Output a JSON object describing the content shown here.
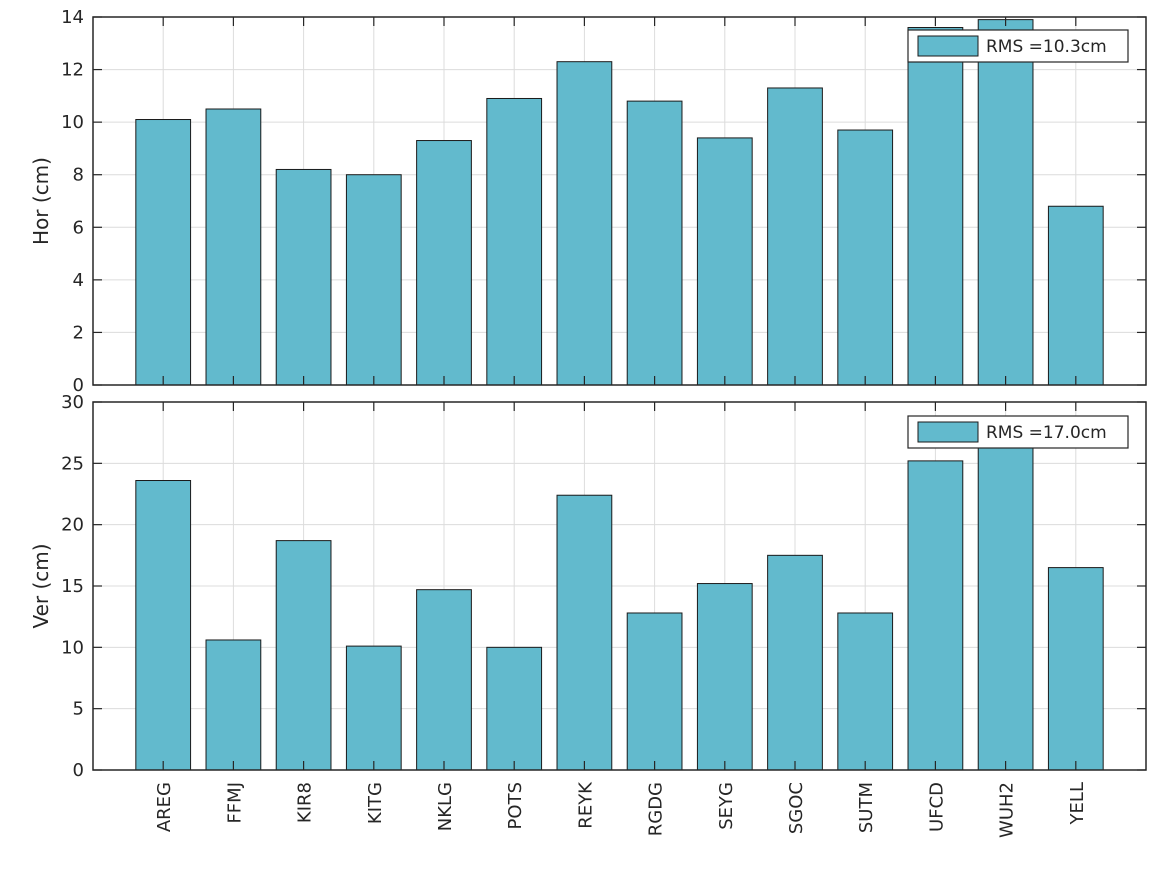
{
  "chart_data": [
    {
      "type": "bar",
      "ylabel": "Hor (cm)",
      "ylim": [
        0,
        14
      ],
      "yticks": [
        0,
        2,
        4,
        6,
        8,
        10,
        12,
        14
      ],
      "grid": true,
      "legend_placement": "top-right",
      "bar_color": "#62bacd",
      "categories": [
        "AREG",
        "FFMJ",
        "KIR8",
        "KITG",
        "NKLG",
        "POTS",
        "REYK",
        "RGDG",
        "SEYG",
        "SGOC",
        "SUTM",
        "UFCD",
        "WUH2",
        "YELL"
      ],
      "series": [
        {
          "name": "RMS =10.3cm",
          "values": [
            10.1,
            10.5,
            8.2,
            8.0,
            9.3,
            10.9,
            12.3,
            10.8,
            9.4,
            11.3,
            9.7,
            13.6,
            13.9,
            6.8
          ]
        }
      ]
    },
    {
      "type": "bar",
      "ylabel": "Ver (cm)",
      "ylim": [
        0,
        30
      ],
      "yticks": [
        0,
        5,
        10,
        15,
        20,
        25,
        30
      ],
      "grid": true,
      "legend_placement": "top-right",
      "bar_color": "#62bacd",
      "categories": [
        "AREG",
        "FFMJ",
        "KIR8",
        "KITG",
        "NKLG",
        "POTS",
        "REYK",
        "RGDG",
        "SEYG",
        "SGOC",
        "SUTM",
        "UFCD",
        "WUH2",
        "YELL"
      ],
      "series": [
        {
          "name": "RMS =17.0cm",
          "values": [
            23.6,
            10.6,
            18.7,
            10.1,
            14.7,
            10.0,
            22.4,
            12.8,
            15.2,
            17.5,
            12.8,
            25.2,
            26.5,
            16.5
          ]
        }
      ]
    }
  ]
}
